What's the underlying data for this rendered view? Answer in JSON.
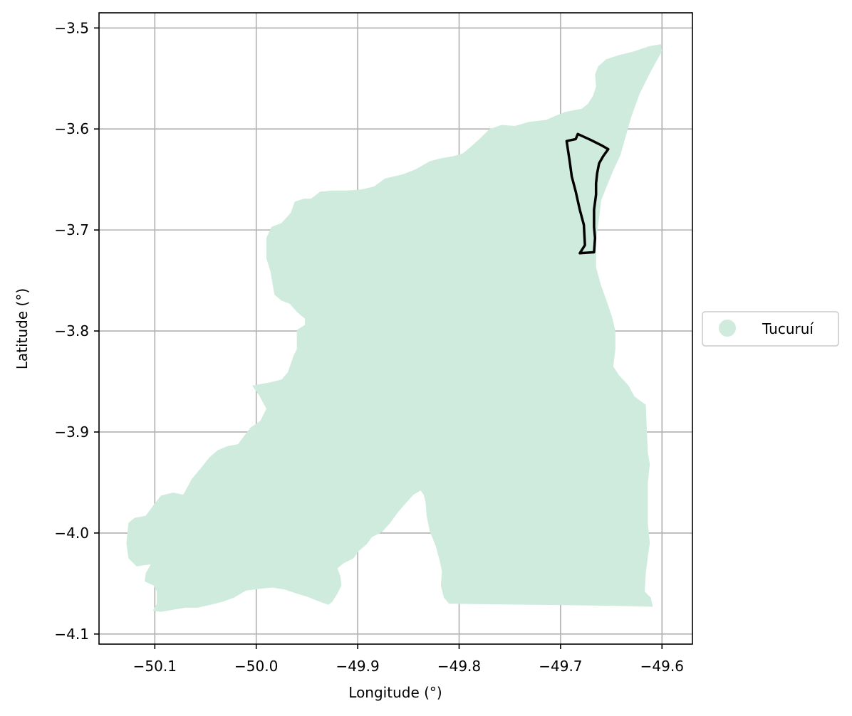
{
  "map": {
    "xlabel": "Longitude (°)",
    "ylabel": "Latitude (°)",
    "xlim": [
      -50.155,
      -49.57
    ],
    "ylim": [
      -4.11,
      -3.485
    ],
    "grid": true,
    "legend_placement": "right-center",
    "x_ticks": [
      {
        "value": -50.1,
        "label": "−50.1"
      },
      {
        "value": -50.0,
        "label": "−50.0"
      },
      {
        "value": -49.9,
        "label": "−49.9"
      },
      {
        "value": -49.8,
        "label": "−49.8"
      },
      {
        "value": -49.7,
        "label": "−49.7"
      },
      {
        "value": -49.6,
        "label": "−49.6"
      }
    ],
    "y_ticks": [
      {
        "value": -3.5,
        "label": "−3.5"
      },
      {
        "value": -3.6,
        "label": "−3.6"
      },
      {
        "value": -3.7,
        "label": "−3.7"
      },
      {
        "value": -3.8,
        "label": "−3.8"
      },
      {
        "value": -3.9,
        "label": "−3.9"
      },
      {
        "value": -4.0,
        "label": "−4.0"
      },
      {
        "value": -4.1,
        "label": "−4.1"
      }
    ],
    "region": {
      "name": "Tucuruí",
      "fill_color": "#cfebde",
      "boundary": [
        [
          -49.6,
          -3.523
        ],
        [
          -49.611,
          -3.543
        ],
        [
          -49.622,
          -3.565
        ],
        [
          -49.63,
          -3.587
        ],
        [
          -49.636,
          -3.608
        ],
        [
          -49.641,
          -3.626
        ],
        [
          -49.648,
          -3.641
        ],
        [
          -49.655,
          -3.658
        ],
        [
          -49.66,
          -3.671
        ],
        [
          -49.662,
          -3.688
        ],
        [
          -49.665,
          -3.71
        ],
        [
          -49.665,
          -3.737
        ],
        [
          -49.66,
          -3.755
        ],
        [
          -49.654,
          -3.772
        ],
        [
          -49.649,
          -3.787
        ],
        [
          -49.646,
          -3.8
        ],
        [
          -49.646,
          -3.818
        ],
        [
          -49.648,
          -3.835
        ],
        [
          -49.643,
          -3.843
        ],
        [
          -49.633,
          -3.854
        ],
        [
          -49.627,
          -3.865
        ],
        [
          -49.616,
          -3.873
        ],
        [
          -49.614,
          -3.92
        ],
        [
          -49.612,
          -3.932
        ],
        [
          -49.614,
          -3.951
        ],
        [
          -49.614,
          -3.99
        ],
        [
          -49.612,
          -4.01
        ],
        [
          -49.614,
          -4.024
        ],
        [
          -49.616,
          -4.04
        ],
        [
          -49.617,
          -4.058
        ],
        [
          -49.611,
          -4.064
        ],
        [
          -49.609,
          -4.073
        ],
        [
          -49.65,
          -4.072
        ],
        [
          -49.73,
          -4.071
        ],
        [
          -49.81,
          -4.07
        ],
        [
          -49.815,
          -4.064
        ],
        [
          -49.818,
          -4.052
        ],
        [
          -49.817,
          -4.038
        ],
        [
          -49.819,
          -4.028
        ],
        [
          -49.823,
          -4.013
        ],
        [
          -49.829,
          -3.998
        ],
        [
          -49.832,
          -3.983
        ],
        [
          -49.833,
          -3.97
        ],
        [
          -49.835,
          -3.962
        ],
        [
          -49.838,
          -3.958
        ],
        [
          -49.845,
          -3.962
        ],
        [
          -49.853,
          -3.971
        ],
        [
          -49.86,
          -3.979
        ],
        [
          -49.868,
          -3.99
        ],
        [
          -49.876,
          -3.999
        ],
        [
          -49.886,
          -4.004
        ],
        [
          -49.891,
          -4.011
        ],
        [
          -49.899,
          -4.018
        ],
        [
          -49.904,
          -4.025
        ],
        [
          -49.914,
          -4.03
        ],
        [
          -49.92,
          -4.035
        ],
        [
          -49.917,
          -4.043
        ],
        [
          -49.916,
          -4.052
        ],
        [
          -49.92,
          -4.06
        ],
        [
          -49.925,
          -4.068
        ],
        [
          -49.929,
          -4.071
        ],
        [
          -49.94,
          -4.067
        ],
        [
          -49.95,
          -4.063
        ],
        [
          -49.96,
          -4.06
        ],
        [
          -49.972,
          -4.056
        ],
        [
          -49.984,
          -4.054
        ],
        [
          -49.994,
          -4.055
        ],
        [
          -50.01,
          -4.057
        ],
        [
          -50.022,
          -4.064
        ],
        [
          -50.033,
          -4.068
        ],
        [
          -50.045,
          -4.071
        ],
        [
          -50.058,
          -4.074
        ],
        [
          -50.07,
          -4.074
        ],
        [
          -50.082,
          -4.076
        ],
        [
          -50.094,
          -4.078
        ],
        [
          -50.102,
          -4.077
        ],
        [
          -50.098,
          -4.07
        ],
        [
          -50.098,
          -4.058
        ],
        [
          -50.101,
          -4.052
        ],
        [
          -50.11,
          -4.048
        ],
        [
          -50.109,
          -4.04
        ],
        [
          -50.104,
          -4.031
        ],
        [
          -50.118,
          -4.033
        ],
        [
          -50.126,
          -4.025
        ],
        [
          -50.128,
          -4.01
        ],
        [
          -50.126,
          -3.99
        ],
        [
          -50.12,
          -3.985
        ],
        [
          -50.109,
          -3.983
        ],
        [
          -50.101,
          -3.972
        ],
        [
          -50.094,
          -3.963
        ],
        [
          -50.082,
          -3.96
        ],
        [
          -50.072,
          -3.962
        ],
        [
          -50.067,
          -3.953
        ],
        [
          -50.064,
          -3.947
        ],
        [
          -50.054,
          -3.935
        ],
        [
          -50.046,
          -3.925
        ],
        [
          -50.038,
          -3.918
        ],
        [
          -50.028,
          -3.914
        ],
        [
          -50.018,
          -3.912
        ],
        [
          -50.006,
          -3.896
        ],
        [
          -49.996,
          -3.889
        ],
        [
          -49.99,
          -3.877
        ],
        [
          -49.997,
          -3.864
        ],
        [
          -50.004,
          -3.854
        ],
        [
          -49.987,
          -3.851
        ],
        [
          -49.975,
          -3.848
        ],
        [
          -49.969,
          -3.841
        ],
        [
          -49.963,
          -3.824
        ],
        [
          -49.96,
          -3.818
        ],
        [
          -49.96,
          -3.811
        ],
        [
          -49.96,
          -3.799
        ],
        [
          -49.952,
          -3.794
        ],
        [
          -49.952,
          -3.788
        ],
        [
          -49.96,
          -3.781
        ],
        [
          -49.967,
          -3.773
        ],
        [
          -49.975,
          -3.77
        ],
        [
          -49.982,
          -3.764
        ],
        [
          -49.984,
          -3.753
        ],
        [
          -49.986,
          -3.741
        ],
        [
          -49.99,
          -3.728
        ],
        [
          -49.99,
          -3.718
        ],
        [
          -49.99,
          -3.708
        ],
        [
          -49.985,
          -3.697
        ],
        [
          -49.975,
          -3.693
        ],
        [
          -49.966,
          -3.683
        ],
        [
          -49.962,
          -3.672
        ],
        [
          -49.953,
          -3.669
        ],
        [
          -49.946,
          -3.669
        ],
        [
          -49.937,
          -3.662
        ],
        [
          -49.925,
          -3.661
        ],
        [
          -49.911,
          -3.661
        ],
        [
          -49.897,
          -3.66
        ],
        [
          -49.884,
          -3.657
        ],
        [
          -49.873,
          -3.649
        ],
        [
          -49.856,
          -3.645
        ],
        [
          -49.843,
          -3.64
        ],
        [
          -49.829,
          -3.632
        ],
        [
          -49.818,
          -3.629
        ],
        [
          -49.806,
          -3.627
        ],
        [
          -49.796,
          -3.624
        ],
        [
          -49.789,
          -3.618
        ],
        [
          -49.78,
          -3.61
        ],
        [
          -49.77,
          -3.6
        ],
        [
          -49.758,
          -3.596
        ],
        [
          -49.745,
          -3.597
        ],
        [
          -49.731,
          -3.593
        ],
        [
          -49.714,
          -3.591
        ],
        [
          -49.705,
          -3.587
        ],
        [
          -49.695,
          -3.583
        ],
        [
          -49.679,
          -3.58
        ],
        [
          -49.673,
          -3.575
        ],
        [
          -49.668,
          -3.567
        ],
        [
          -49.665,
          -3.558
        ],
        [
          -49.666,
          -3.546
        ],
        [
          -49.663,
          -3.538
        ],
        [
          -49.655,
          -3.531
        ],
        [
          -49.643,
          -3.527
        ],
        [
          -49.627,
          -3.523
        ],
        [
          -49.612,
          -3.518
        ],
        [
          -49.601,
          -3.516
        ],
        [
          -49.6,
          -3.523
        ]
      ]
    },
    "highlight_outline": {
      "boundary": [
        [
          -49.694,
          -3.612
        ],
        [
          -49.685,
          -3.61
        ],
        [
          -49.683,
          -3.605
        ],
        [
          -49.67,
          -3.611
        ],
        [
          -49.66,
          -3.616
        ],
        [
          -49.653,
          -3.62
        ],
        [
          -49.658,
          -3.627
        ],
        [
          -49.662,
          -3.634
        ],
        [
          -49.664,
          -3.644
        ],
        [
          -49.665,
          -3.654
        ],
        [
          -49.665,
          -3.665
        ],
        [
          -49.667,
          -3.68
        ],
        [
          -49.667,
          -3.697
        ],
        [
          -49.666,
          -3.708
        ],
        [
          -49.667,
          -3.722
        ],
        [
          -49.681,
          -3.723
        ],
        [
          -49.676,
          -3.715
        ],
        [
          -49.677,
          -3.695
        ],
        [
          -49.681,
          -3.68
        ],
        [
          -49.685,
          -3.662
        ],
        [
          -49.689,
          -3.647
        ],
        [
          -49.691,
          -3.632
        ],
        [
          -49.694,
          -3.612
        ]
      ],
      "stroke_color": "#000000"
    },
    "legend": {
      "entries": [
        {
          "label": "Tucuruí",
          "color": "#cfebde"
        }
      ]
    }
  }
}
